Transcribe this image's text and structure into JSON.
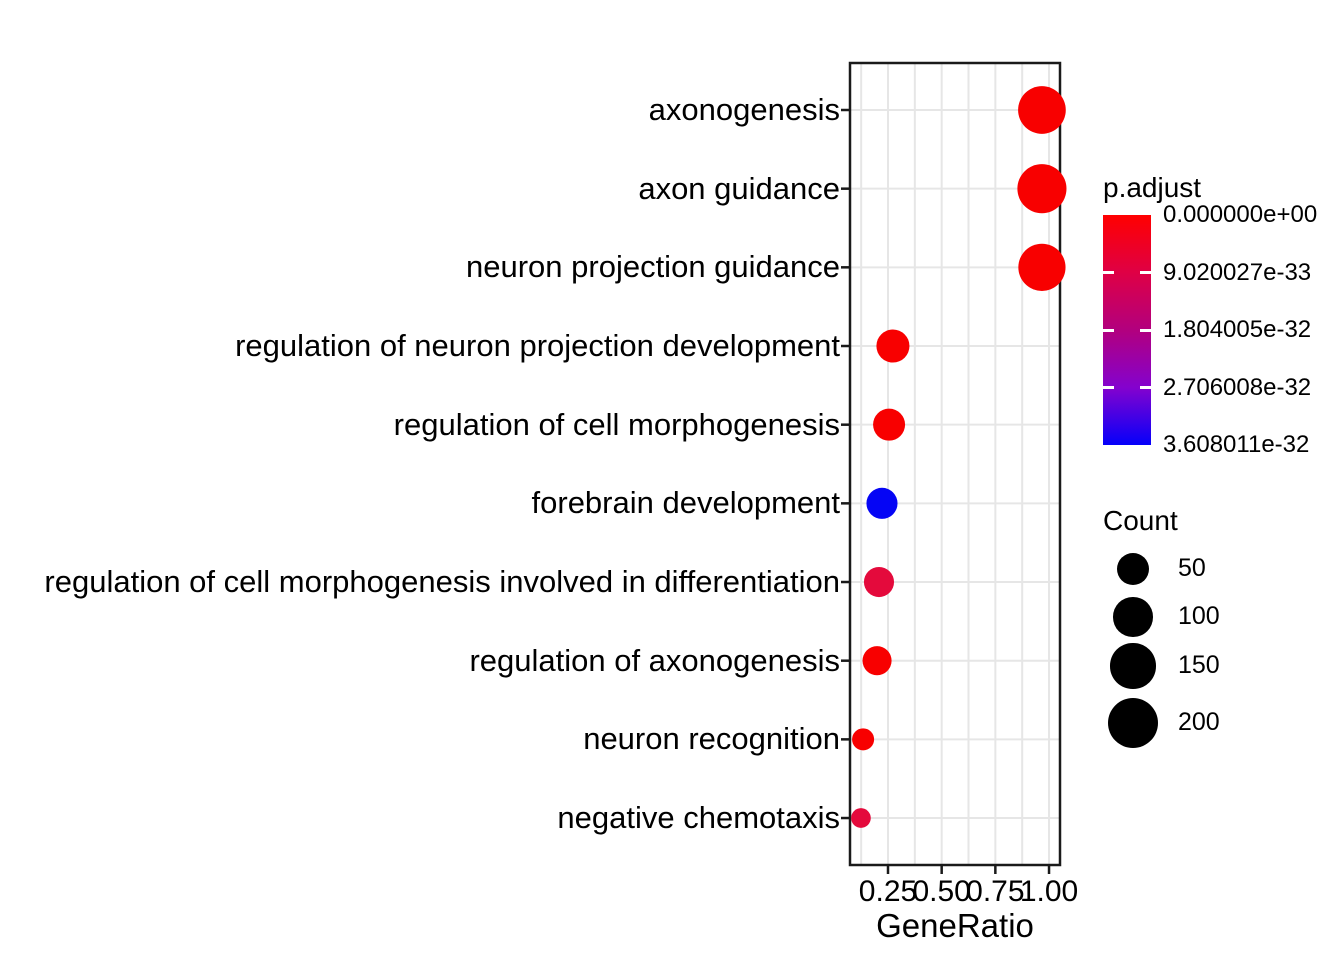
{
  "chart_data": {
    "type": "scatter",
    "subtype": "enrichment-dotplot",
    "title": "",
    "xlabel": "GeneRatio",
    "ylabel": "",
    "xlim": [
      0.08,
      1.05
    ],
    "x_ticks": [
      0.25,
      0.5,
      0.75,
      1.0
    ],
    "x_tick_labels": [
      "0.25",
      "0.50",
      "0.75",
      "1.00"
    ],
    "x_minor_ticks": [
      0.125,
      0.375,
      0.625,
      0.875
    ],
    "grid": true,
    "grid_color": "#E6E6E6",
    "panel_border_color": "#1A1A1A",
    "background": "#FFFFFF",
    "legend_position": "right",
    "points": [
      {
        "label": "axonogenesis",
        "gene_ratio": 0.967,
        "count": 175,
        "p_adjust": 0,
        "color": "#F80000"
      },
      {
        "label": "axon guidance",
        "gene_ratio": 0.967,
        "count": 190,
        "p_adjust": 0,
        "color": "#F80000"
      },
      {
        "label": "neuron projection guidance",
        "gene_ratio": 0.967,
        "count": 170,
        "p_adjust": 0,
        "color": "#F80000"
      },
      {
        "label": "regulation of neuron projection development",
        "gene_ratio": 0.273,
        "count": 56,
        "p_adjust": 0,
        "color": "#F80000"
      },
      {
        "label": "regulation of cell morphogenesis",
        "gene_ratio": 0.255,
        "count": 50,
        "p_adjust": 0,
        "color": "#F80000"
      },
      {
        "label": "forebrain development",
        "gene_ratio": 0.222,
        "count": 45,
        "p_adjust": 3.6e-32,
        "color": "#0505F5"
      },
      {
        "label": "regulation of cell morphogenesis involved in differentiation",
        "gene_ratio": 0.208,
        "count": 40,
        "p_adjust": 5.5e-33,
        "color": "#E40A3C"
      },
      {
        "label": "regulation of axonogenesis",
        "gene_ratio": 0.199,
        "count": 35,
        "p_adjust": 0,
        "color": "#F80000"
      },
      {
        "label": "neuron recognition",
        "gene_ratio": 0.134,
        "count": 10,
        "p_adjust": 0,
        "color": "#F80000"
      },
      {
        "label": "negative chemotaxis",
        "gene_ratio": 0.124,
        "count": 5,
        "p_adjust": 5.5e-33,
        "color": "#E40A3C"
      }
    ],
    "color_legend": {
      "title": "p.adjust",
      "tick_labels": [
        "0.000000e+00",
        "9.020027e-33",
        "1.804005e-32",
        "2.706008e-32",
        "3.608011e-32"
      ],
      "low_color": "#FF0000",
      "high_color": "#0000FF",
      "gradient": [
        "#FF0000",
        "#DF0045",
        "#B2007E",
        "#8402CE",
        "#0500FA"
      ]
    },
    "size_legend": {
      "title": "Count",
      "values": [
        50,
        100,
        150,
        200
      ],
      "labels": [
        "50",
        "100",
        "150",
        "200"
      ],
      "circle_color": "#000000"
    }
  }
}
